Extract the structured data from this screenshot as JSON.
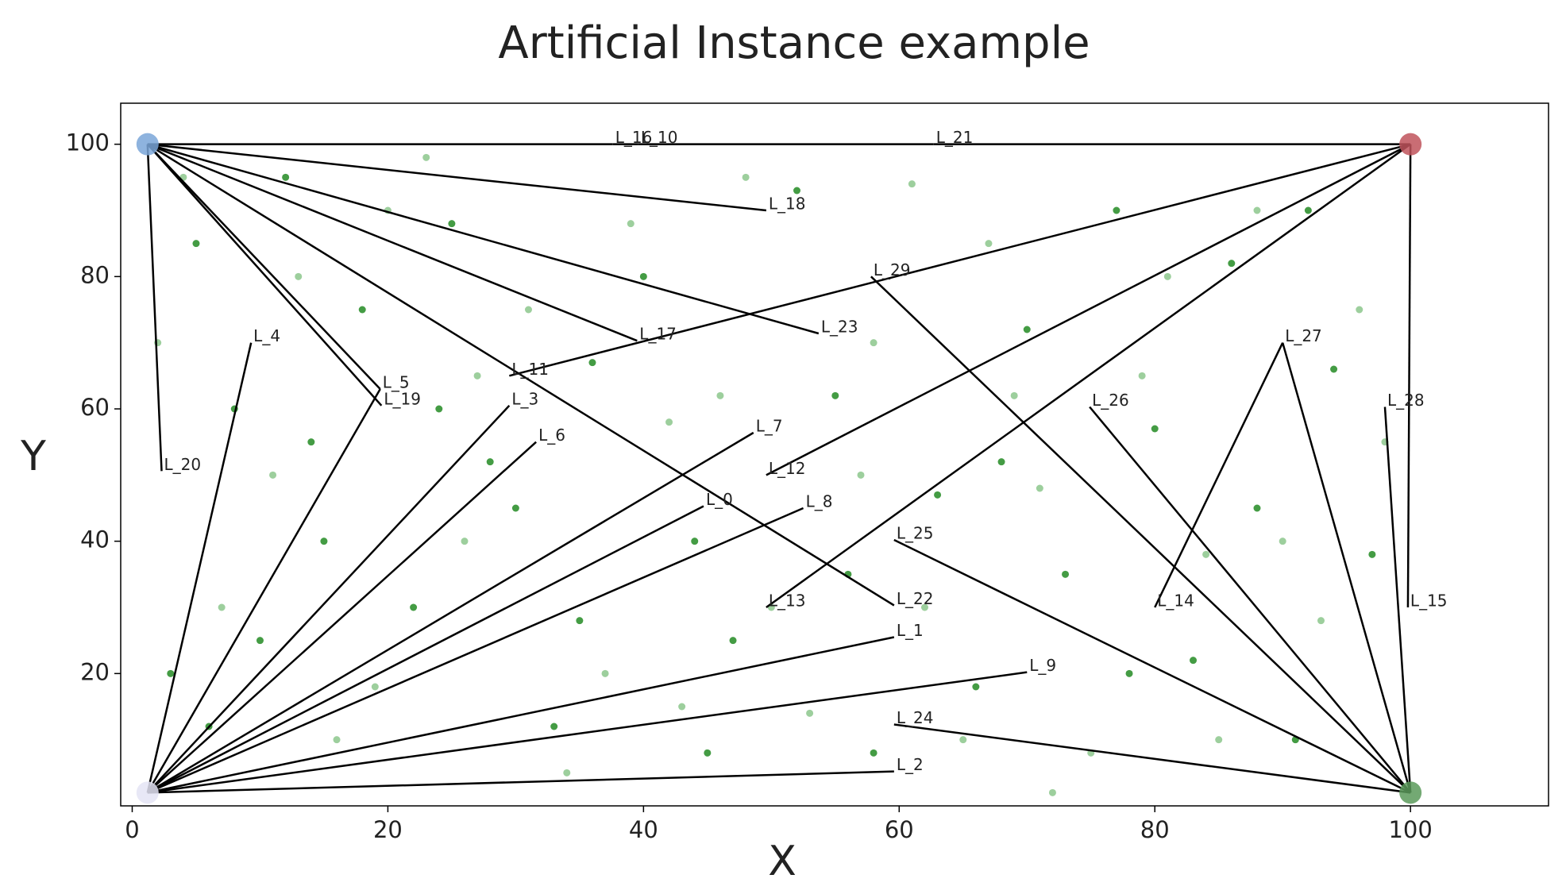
{
  "chart_data": {
    "type": "scatter",
    "title": "Artificial Instance example",
    "x_label": "X",
    "y_label": "Y",
    "xlim": [
      -0.9,
      110.8
    ],
    "ylim": [
      0,
      106.2
    ],
    "xticks": [
      0,
      20,
      40,
      60,
      80,
      100
    ],
    "yticks": [
      20,
      40,
      60,
      80,
      100
    ],
    "customers": [
      {
        "color": "#238b23",
        "x": [
          3,
          5,
          8,
          12,
          15,
          18,
          22,
          25,
          28,
          33,
          36,
          40,
          44,
          47,
          52,
          55,
          58,
          63,
          66,
          70,
          73,
          77,
          80,
          83,
          86,
          88,
          91,
          94,
          97,
          6,
          14,
          24,
          35,
          45,
          56,
          68,
          78,
          92,
          10,
          30
        ],
        "y": [
          20,
          85,
          60,
          95,
          40,
          75,
          30,
          88,
          52,
          12,
          67,
          80,
          40,
          25,
          93,
          62,
          8,
          47,
          18,
          72,
          35,
          90,
          57,
          22,
          82,
          45,
          10,
          66,
          38,
          12,
          55,
          60,
          28,
          8,
          35,
          52,
          20,
          90,
          25,
          45
        ]
      },
      {
        "color": "#8cc78c",
        "x": [
          2,
          7,
          11,
          16,
          20,
          26,
          31,
          37,
          42,
          48,
          53,
          58,
          62,
          67,
          71,
          75,
          79,
          84,
          88,
          93,
          98,
          4,
          19,
          27,
          39,
          50,
          61,
          72,
          85,
          96,
          13,
          34,
          46,
          57,
          69,
          81,
          90,
          23,
          43,
          65
        ],
        "y": [
          70,
          30,
          50,
          10,
          90,
          40,
          75,
          20,
          58,
          95,
          14,
          70,
          30,
          85,
          48,
          8,
          65,
          38,
          90,
          28,
          55,
          95,
          18,
          65,
          88,
          30,
          94,
          2,
          10,
          75,
          80,
          5,
          62,
          50,
          62,
          80,
          40,
          98,
          15,
          10
        ]
      }
    ],
    "depots": [
      {
        "x": 1.2,
        "y": 100,
        "color": "#7aa6d8"
      },
      {
        "x": 100,
        "y": 100,
        "color": "#c0545c"
      },
      {
        "x": 1.2,
        "y": 2,
        "color": "#e4e4f4"
      },
      {
        "x": 100,
        "y": 2,
        "color": "#5a9a5a"
      }
    ],
    "points": [
      {
        "label": "L_16",
        "x": 37.6,
        "y": 100
      },
      {
        "label": "L_10",
        "x": 39.6,
        "y": 100
      },
      {
        "label": "L_21",
        "x": 62.7,
        "y": 100
      },
      {
        "label": "L_18",
        "x": 49.6,
        "y": 90
      },
      {
        "label": "L_23",
        "x": 53.7,
        "y": 71.4
      },
      {
        "label": "L_17",
        "x": 39.5,
        "y": 70.3
      },
      {
        "label": "L_11",
        "x": 29.5,
        "y": 65
      },
      {
        "label": "L_22",
        "x": 59.6,
        "y": 30.3
      },
      {
        "label": "L_5",
        "x": 19.4,
        "y": 63
      },
      {
        "label": "L_19",
        "x": 19.5,
        "y": 60.5
      },
      {
        "label": "L_20",
        "x": 2.3,
        "y": 50.6
      },
      {
        "label": "L_4",
        "x": 9.3,
        "y": 70
      },
      {
        "label": "L_3",
        "x": 29.5,
        "y": 60.5
      },
      {
        "label": "L_6",
        "x": 31.6,
        "y": 55
      },
      {
        "label": "L_7",
        "x": 48.6,
        "y": 56.4
      },
      {
        "label": "L_0",
        "x": 44.7,
        "y": 45.3
      },
      {
        "label": "L_8",
        "x": 52.5,
        "y": 45
      },
      {
        "label": "L_1",
        "x": 59.6,
        "y": 25.5
      },
      {
        "label": "L_9",
        "x": 70,
        "y": 20.2
      },
      {
        "label": "L_2",
        "x": 59.6,
        "y": 5.2
      },
      {
        "label": "L_12",
        "x": 49.6,
        "y": 50
      },
      {
        "label": "L_13",
        "x": 49.6,
        "y": 30
      },
      {
        "label": "L_15",
        "x": 99.8,
        "y": 30
      },
      {
        "label": "L_29",
        "x": 57.8,
        "y": 80
      },
      {
        "label": "L_26",
        "x": 74.9,
        "y": 60.3
      },
      {
        "label": "L_25",
        "x": 59.6,
        "y": 40.2
      },
      {
        "label": "L_24",
        "x": 59.6,
        "y": 12.3
      },
      {
        "label": "L_28",
        "x": 98,
        "y": 60.3
      },
      {
        "label": "L_27",
        "x": 90,
        "y": 70
      },
      {
        "label": "L_14",
        "x": 80,
        "y": 30
      }
    ],
    "edges": [
      [
        0,
        4
      ],
      [
        4,
        5
      ],
      [
        5,
        6
      ],
      [
        6,
        1
      ],
      [
        0,
        7
      ],
      [
        0,
        8
      ],
      [
        0,
        9
      ],
      [
        0,
        11
      ],
      [
        10,
        1
      ],
      [
        0,
        12
      ],
      [
        0,
        13
      ],
      [
        0,
        14
      ],
      [
        2,
        15
      ],
      [
        2,
        12
      ],
      [
        2,
        16
      ],
      [
        2,
        17
      ],
      [
        2,
        18
      ],
      [
        2,
        19
      ],
      [
        2,
        20
      ],
      [
        2,
        21
      ],
      [
        2,
        22
      ],
      [
        2,
        23
      ],
      [
        1,
        24
      ],
      [
        1,
        25
      ],
      [
        1,
        26
      ],
      [
        3,
        27
      ],
      [
        3,
        28
      ],
      [
        3,
        29
      ],
      [
        3,
        30
      ],
      [
        3,
        31
      ],
      [
        3,
        32
      ],
      [
        32,
        33
      ]
    ]
  }
}
